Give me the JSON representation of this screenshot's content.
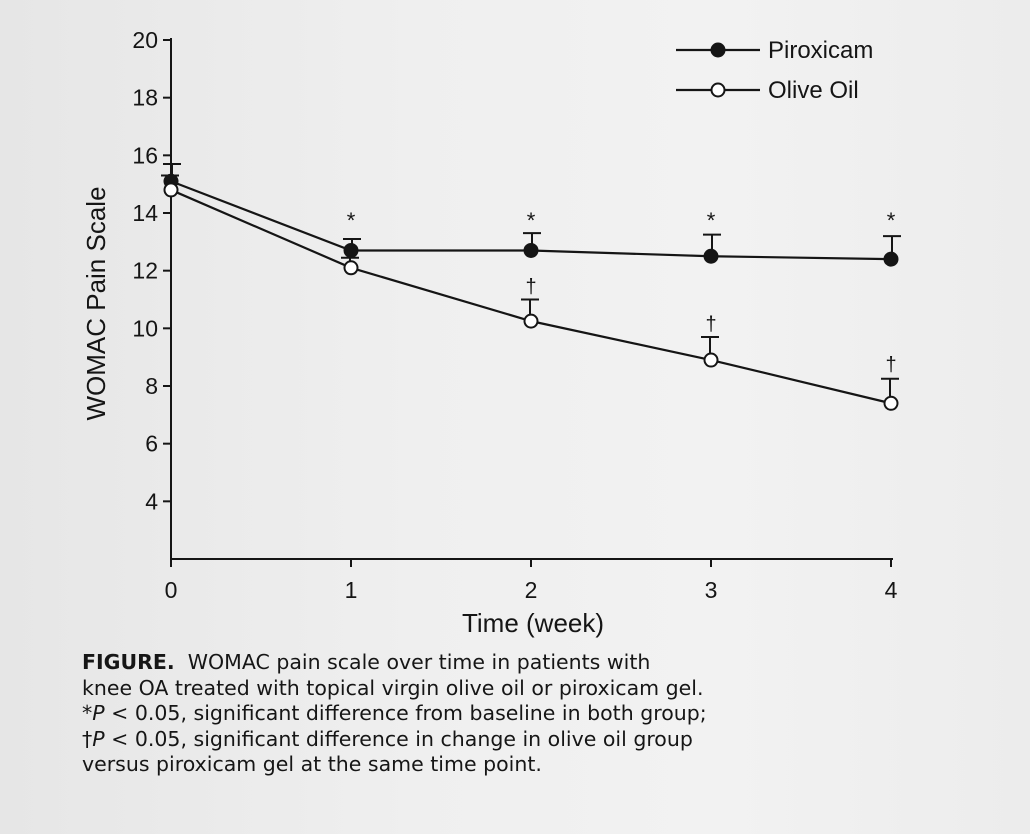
{
  "chart_data": {
    "type": "line",
    "x": [
      0,
      1,
      2,
      3,
      4
    ],
    "xticks": [
      "0",
      "1",
      "2",
      "3",
      "4"
    ],
    "yticks": [
      "4",
      "6",
      "8",
      "10",
      "12",
      "14",
      "16",
      "18",
      "20"
    ],
    "xlabel": "Time (week)",
    "ylabel": "WOMAC Pain Scale",
    "xlim": [
      0,
      4
    ],
    "ylim": [
      2,
      20
    ],
    "grid": false,
    "legend_position": "top-right",
    "series": [
      {
        "name": "Piroxicam",
        "marker": "filled-circle",
        "values": [
          15.1,
          12.7,
          12.7,
          12.5,
          12.4
        ],
        "errors": [
          0.6,
          0.4,
          0.6,
          0.75,
          0.8
        ]
      },
      {
        "name": "Olive Oil",
        "marker": "open-circle",
        "values": [
          14.8,
          12.1,
          10.25,
          8.9,
          7.4
        ],
        "errors": [
          0.5,
          0.35,
          0.75,
          0.8,
          0.85
        ]
      }
    ],
    "annotations": [
      {
        "x": 1,
        "y": 13.9,
        "text": "*"
      },
      {
        "x": 2,
        "y": 13.9,
        "text": "*"
      },
      {
        "x": 3,
        "y": 13.9,
        "text": "*"
      },
      {
        "x": 4,
        "y": 13.9,
        "text": "*"
      },
      {
        "x": 2,
        "y": 11.5,
        "text": "†"
      },
      {
        "x": 3,
        "y": 10.2,
        "text": "†"
      },
      {
        "x": 4,
        "y": 8.8,
        "text": "†"
      }
    ]
  },
  "caption": {
    "label": "FIGURE.",
    "line1": "WOMAC pain scale over time in patients with",
    "line2": "knee OA treated with topical virgin olive oil or piroxicam gel.",
    "line3_mark": "*",
    "line3_p": "P",
    "line3_rest": " < 0.05, significant difference from baseline in both group;",
    "line4_mark": "†",
    "line4_p": "P",
    "line4_rest": " < 0.05, significant difference in change in olive oil group",
    "line5": "versus piroxicam gel at the same time point."
  }
}
